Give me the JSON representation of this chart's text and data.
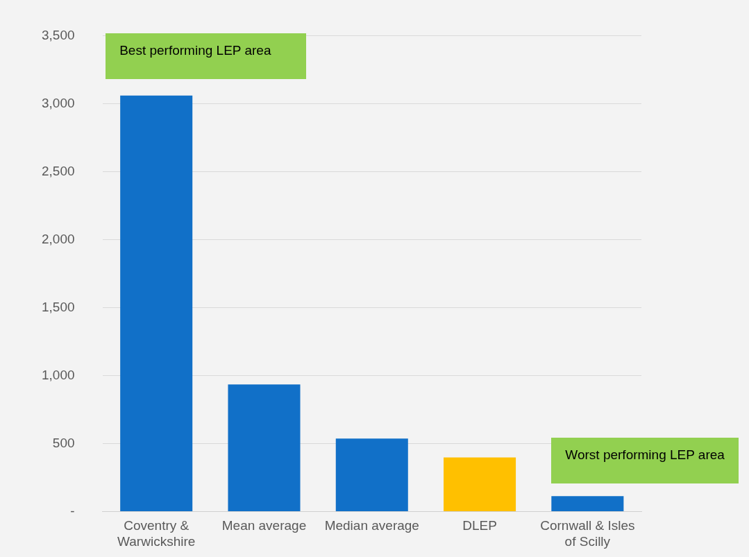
{
  "chart_data": {
    "type": "bar",
    "categories": [
      "Coventry & Warwickshire",
      "Mean average",
      "Median average",
      "DLEP",
      "Cornwall & Isles of Scilly"
    ],
    "values": [
      3060,
      935,
      536,
      398,
      113
    ],
    "colors": [
      "#1170c8",
      "#1170c8",
      "#1170c8",
      "#ffc000",
      "#1170c8"
    ],
    "ylim": [
      0,
      3500
    ],
    "yticks": [
      {
        "value": 0,
        "label": "-"
      },
      {
        "value": 500,
        "label": "500"
      },
      {
        "value": 1000,
        "label": "1,000"
      },
      {
        "value": 1500,
        "label": "1,500"
      },
      {
        "value": 2000,
        "label": "2,000"
      },
      {
        "value": 2500,
        "label": "2,500"
      },
      {
        "value": 3000,
        "label": "3,000"
      },
      {
        "value": 3500,
        "label": "3,500"
      }
    ],
    "grid": "y",
    "legend": false,
    "annotations": [
      "Best performing LEP area",
      "Worst performing LEP area"
    ]
  }
}
